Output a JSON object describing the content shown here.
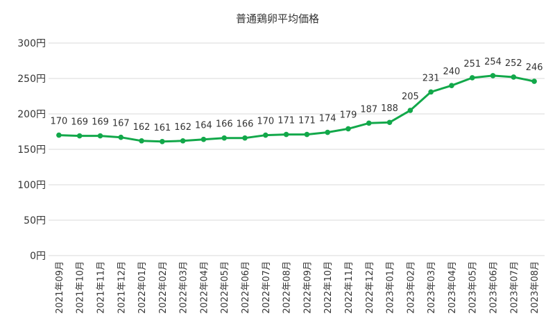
{
  "chart_data": {
    "type": "line",
    "title": "普通鶏卵平均価格",
    "xlabel": "",
    "ylabel": "",
    "categories": [
      "2021年09月",
      "2021年10月",
      "2021年11月",
      "2021年12月",
      "2022年01月",
      "2022年02月",
      "2022年03月",
      "2022年04月",
      "2022年05月",
      "2022年06月",
      "2022年07月",
      "2022年08月",
      "2022年09月",
      "2022年10月",
      "2022年11月",
      "2022年12月",
      "2023年01月",
      "2023年02月",
      "2023年03月",
      "2023年04月",
      "2023年05月",
      "2023年06月",
      "2023年07月",
      "2023年08月"
    ],
    "series": [
      {
        "values": [
          170,
          169,
          169,
          167,
          162,
          161,
          162,
          164,
          166,
          166,
          170,
          171,
          171,
          174,
          179,
          187,
          188,
          205,
          231,
          240,
          251,
          254,
          252,
          246
        ]
      }
    ],
    "ylim": [
      0,
      300
    ],
    "yticks": [
      0,
      50,
      100,
      150,
      200,
      250,
      300
    ],
    "y_unit": "円",
    "grid": true,
    "data_labels": true,
    "line_color": "#12a84a",
    "grid_color": "#d9d9d9"
  }
}
